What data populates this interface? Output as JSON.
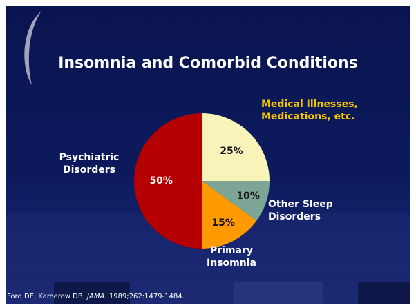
{
  "chart_data": {
    "type": "pie",
    "title": "Insomnia and Comorbid Conditions",
    "categories": [
      "Medical Illnesses, Medications, etc.",
      "Other Sleep Disorders",
      "Primary Insomnia",
      "Psychiatric Disorders"
    ],
    "values": [
      25,
      10,
      15,
      50
    ],
    "value_labels": [
      "25%",
      "10%",
      "15%",
      "50%"
    ],
    "colors": [
      "#f7f3b9",
      "#7da595",
      "#ff9a00",
      "#b50000"
    ],
    "source": [
      "Ford DE, Kamerow DB. ",
      "JAMA.",
      " 1989;262:1479-1484."
    ]
  }
}
